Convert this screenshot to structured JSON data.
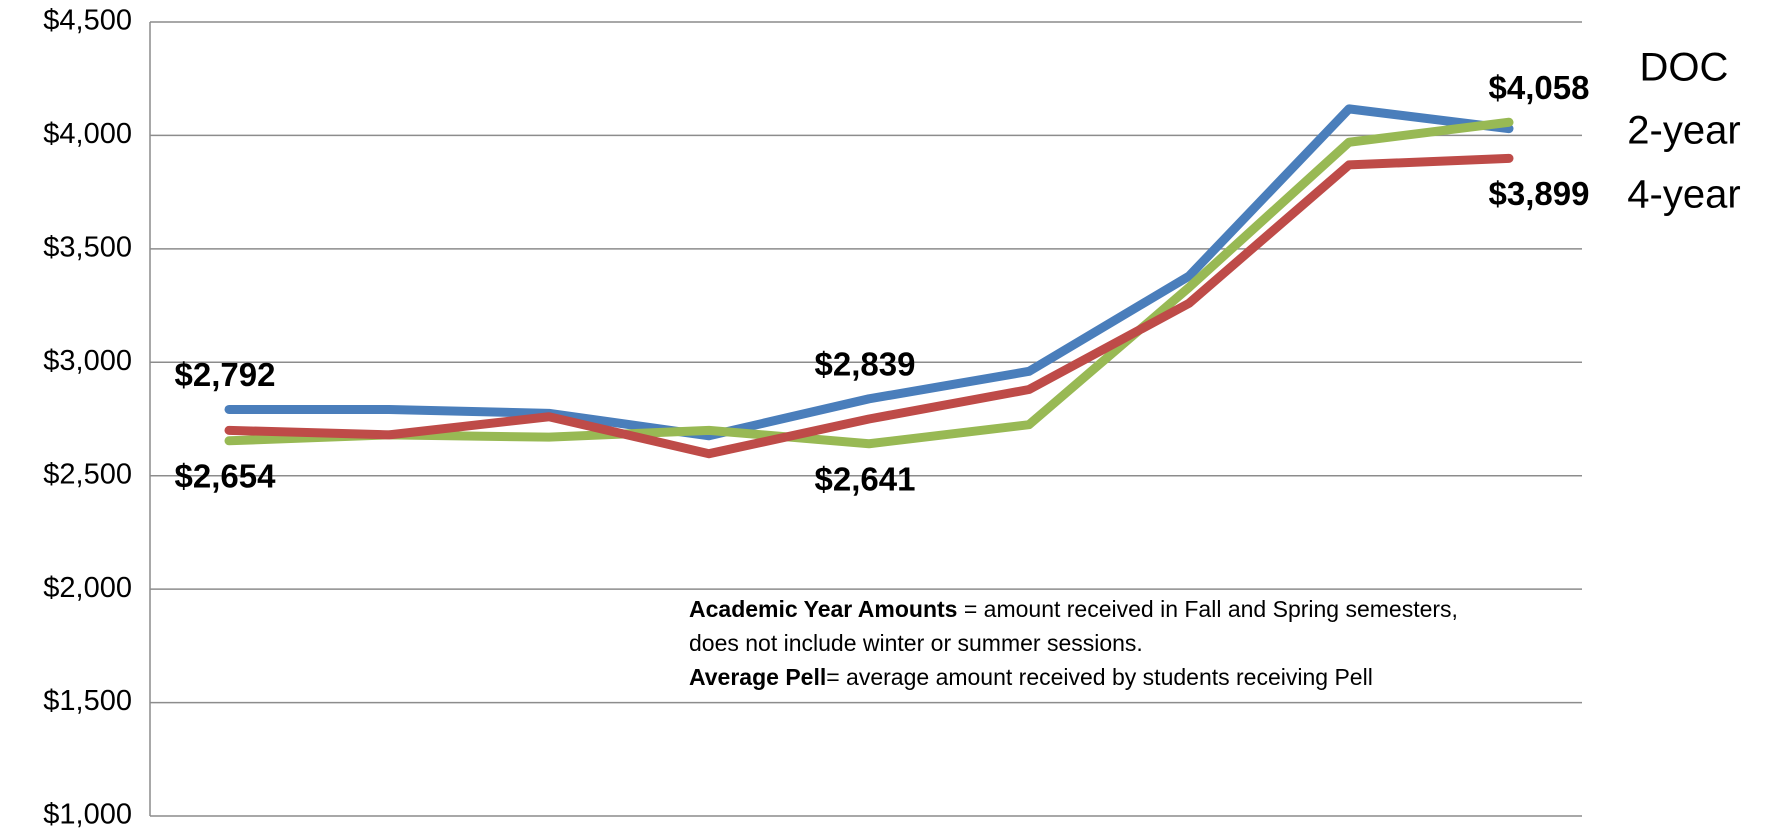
{
  "chart_data": {
    "type": "line",
    "categories": [
      null,
      null,
      null,
      null,
      null,
      null,
      null,
      null,
      null
    ],
    "series": [
      {
        "name": "DOC",
        "color": "#4a7ebb",
        "values": [
          2792,
          2792,
          2775,
          2676,
          2839,
          2960,
          3380,
          4117,
          4030
        ],
        "value_labels": [
          "$2,792",
          null,
          null,
          null,
          "$2,839",
          null,
          null,
          null,
          null
        ]
      },
      {
        "name": "2-year",
        "color": "#98b954",
        "values": [
          2654,
          2680,
          2670,
          2700,
          2641,
          2725,
          3330,
          3970,
          4058
        ],
        "value_labels": [
          "$2,654",
          null,
          null,
          null,
          "$2,641",
          null,
          null,
          null,
          "$4,058"
        ]
      },
      {
        "name": "4-year",
        "color": "#be4b48",
        "values": [
          2700,
          2680,
          2760,
          2597,
          2750,
          2880,
          3260,
          3870,
          3899
        ],
        "value_labels": [
          null,
          null,
          null,
          null,
          null,
          null,
          null,
          null,
          "$3,899"
        ]
      }
    ],
    "ylim": [
      1000,
      4500
    ],
    "yticks": [
      {
        "value": 1000,
        "label": "$1,000"
      },
      {
        "value": 1500,
        "label": "$1,500"
      },
      {
        "value": 2000,
        "label": "$2,000"
      },
      {
        "value": 2500,
        "label": "$2,500"
      },
      {
        "value": 3000,
        "label": "$3,000"
      },
      {
        "value": 3500,
        "label": "$3,500"
      },
      {
        "value": 4000,
        "label": "$4,000"
      },
      {
        "value": 4500,
        "label": "$4,500"
      }
    ],
    "grid": true,
    "notes": [
      {
        "term": "Academic Year Amounts",
        "text": " = amount received in Fall and Spring semesters, does not include winter or summer sessions."
      },
      {
        "term": "Average Pell",
        "text": "= average amount received by students receiving Pell"
      }
    ]
  }
}
